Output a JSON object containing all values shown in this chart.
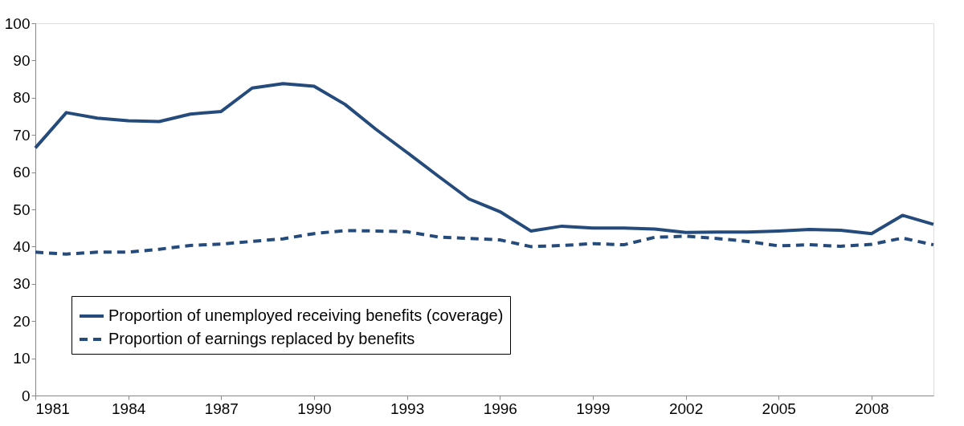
{
  "chart_data": {
    "type": "line",
    "x": [
      1981,
      1982,
      1983,
      1984,
      1985,
      1986,
      1987,
      1988,
      1989,
      1990,
      1991,
      1992,
      1993,
      1994,
      1995,
      1996,
      1997,
      1998,
      1999,
      2000,
      2001,
      2002,
      2003,
      2004,
      2005,
      2006,
      2007,
      2008,
      2009,
      2010
    ],
    "series": [
      {
        "name": "Proportion of unemployed receiving benefits (coverage)",
        "color": "#254b7d",
        "line_style": "solid",
        "values": [
          66.5,
          76,
          74.5,
          73.8,
          73.6,
          75.6,
          76.3,
          82.6,
          83.8,
          83.1,
          78.2,
          71.5,
          65.3,
          59,
          52.8,
          49.4,
          44.2,
          45.5,
          45,
          45,
          44.7,
          43.8,
          43.9,
          43.9,
          44.2,
          44.6,
          44.4,
          43.5,
          48.4,
          46
        ]
      },
      {
        "name": "Proportion of earnings replaced by benefits",
        "color": "#254b7d",
        "line_style": "dashed",
        "values": [
          38.5,
          38,
          38.5,
          38.5,
          39.3,
          40.3,
          40.7,
          41.4,
          42.1,
          43.5,
          44.3,
          44.2,
          44,
          42.6,
          42.2,
          41.8,
          40,
          40.3,
          40.8,
          40.5,
          42.5,
          42.8,
          42.2,
          41.4,
          40.2,
          40.5,
          40.1,
          40.6,
          42.3,
          40.5
        ]
      }
    ],
    "xlim": [
      1981,
      2010
    ],
    "xticks": [
      1981,
      1984,
      1987,
      1990,
      1993,
      1996,
      1999,
      2002,
      2005,
      2008
    ],
    "ylim": [
      0,
      100
    ],
    "yticks": [
      0,
      10,
      20,
      30,
      40,
      50,
      60,
      70,
      80,
      90,
      100
    ],
    "grid": false,
    "legend": "bottom left",
    "marker": "none"
  }
}
